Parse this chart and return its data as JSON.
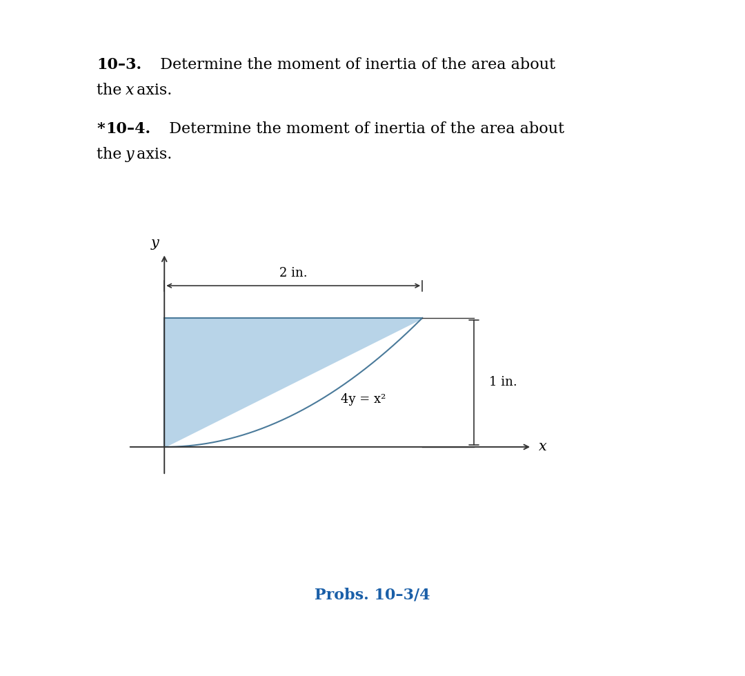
{
  "bg_color": "#ffffff",
  "text_color": "#000000",
  "fill_color": "#b8d4e8",
  "fill_edge_color": "#4a7a9a",
  "prob_label": "Probs. 10–3/4",
  "prob_label_color": "#1a5fa8",
  "dim_2in": "2 in.",
  "dim_1in": "1 in.",
  "curve_equation": "4y = x²",
  "x_label": "x",
  "y_label": "y",
  "x_max": 2.0,
  "y_max": 1.0,
  "arrow_color": "#333333",
  "axis_color": "#333333",
  "fig_width": 10.8,
  "fig_height": 9.8
}
